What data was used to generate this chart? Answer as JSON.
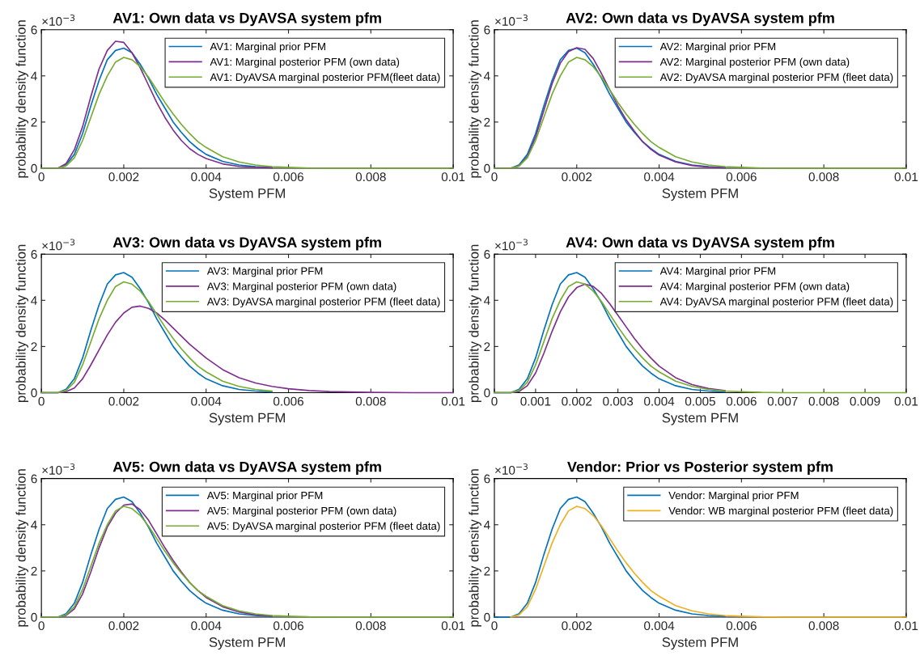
{
  "chart_data": [
    {
      "type": "line",
      "title": "AV1: Own data vs DyAVSA system pfm",
      "xlabel": "System PFM",
      "ylabel": "probability density function",
      "annotations": [
        "×10$^{−3}$"
      ],
      "legend": "top right",
      "xlim": [
        0,
        0.01
      ],
      "ylim": [
        0,
        6
      ],
      "xticks": [
        0,
        0.002,
        0.004,
        0.006,
        0.008,
        0.01
      ],
      "yticks": [
        0,
        2,
        4,
        6
      ],
      "x": [
        0,
        0.0004,
        0.0006,
        0.0008,
        0.001,
        0.0012,
        0.0014,
        0.0016,
        0.0018,
        0.002,
        0.0022,
        0.0024,
        0.0026,
        0.0028,
        0.003,
        0.0032,
        0.0034,
        0.0036,
        0.0038,
        0.004,
        0.0044,
        0.0048,
        0.0052,
        0.0056,
        0.006,
        0.0065,
        0.007,
        0.008,
        0.009,
        0.01
      ],
      "series": [
        {
          "name": "AV1: Marginal prior PFM",
          "color": "#0072bd",
          "values": [
            0,
            0,
            0.15,
            0.6,
            1.5,
            2.7,
            3.8,
            4.7,
            5.1,
            5.2,
            5.0,
            4.5,
            3.9,
            3.2,
            2.6,
            2.0,
            1.55,
            1.15,
            0.85,
            0.6,
            0.3,
            0.14,
            0.07,
            0.03,
            null,
            null,
            null,
            null,
            null,
            null
          ]
        },
        {
          "name": "AV1: Marginal posterior PFM (own data)",
          "color": "#7e2f8e",
          "values": [
            0,
            0,
            0.2,
            0.8,
            1.8,
            3.1,
            4.3,
            5.1,
            5.5,
            5.45,
            5.0,
            4.35,
            3.6,
            2.85,
            2.2,
            1.65,
            1.2,
            0.85,
            0.6,
            0.42,
            0.19,
            0.08,
            0.04,
            0.02,
            null,
            null,
            null,
            null,
            null,
            null
          ]
        },
        {
          "name": "AV1: DyAVSA marginal posterior PFM(fleet data)",
          "color": "#77ac30",
          "values": [
            0,
            0,
            0.1,
            0.45,
            1.2,
            2.2,
            3.2,
            4.0,
            4.6,
            4.8,
            4.7,
            4.4,
            3.95,
            3.4,
            2.85,
            2.35,
            1.9,
            1.5,
            1.15,
            0.9,
            0.5,
            0.27,
            0.14,
            0.07,
            0.04,
            0.01,
            0,
            0,
            0,
            0
          ]
        }
      ]
    },
    {
      "type": "line",
      "title": "AV2: Own data vs DyAVSA system pfm",
      "xlabel": "System PFM",
      "ylabel": "probability density function",
      "annotations": [
        "×10$^{−3}$"
      ],
      "legend": "top right",
      "xlim": [
        0,
        0.01
      ],
      "ylim": [
        0,
        6
      ],
      "xticks": [
        0,
        0.002,
        0.004,
        0.006,
        0.008,
        0.01
      ],
      "yticks": [
        0,
        2,
        4,
        6
      ],
      "x": [
        0,
        0.0004,
        0.0006,
        0.0008,
        0.001,
        0.0012,
        0.0014,
        0.0016,
        0.0018,
        0.002,
        0.0022,
        0.0024,
        0.0026,
        0.0028,
        0.003,
        0.0032,
        0.0034,
        0.0036,
        0.0038,
        0.004,
        0.0044,
        0.0048,
        0.0052,
        0.0056,
        0.006,
        0.0065,
        0.007,
        0.008,
        0.009,
        0.01
      ],
      "series": [
        {
          "name": "AV2: Marginal prior PFM",
          "color": "#0072bd",
          "values": [
            0,
            0,
            0.15,
            0.6,
            1.5,
            2.7,
            3.8,
            4.7,
            5.1,
            5.2,
            5.0,
            4.5,
            3.9,
            3.2,
            2.6,
            2.0,
            1.55,
            1.15,
            0.85,
            0.6,
            0.3,
            0.14,
            0.07,
            0.03,
            null,
            null,
            null,
            null,
            null,
            null
          ]
        },
        {
          "name": "AV2: Marginal posterior PFM (own data)",
          "color": "#7e2f8e",
          "values": [
            0,
            0,
            0.1,
            0.5,
            1.35,
            2.5,
            3.65,
            4.55,
            5.05,
            5.22,
            5.15,
            4.75,
            4.1,
            3.4,
            2.7,
            2.1,
            1.6,
            1.15,
            0.82,
            0.57,
            0.27,
            0.12,
            0.05,
            0.02,
            null,
            null,
            null,
            null,
            null,
            null
          ]
        },
        {
          "name": "AV2: DyAVSA marginal posterior PFM (fleet data)",
          "color": "#77ac30",
          "values": [
            0,
            0,
            0.1,
            0.45,
            1.2,
            2.2,
            3.2,
            4.0,
            4.6,
            4.8,
            4.7,
            4.4,
            3.95,
            3.4,
            2.85,
            2.35,
            1.9,
            1.5,
            1.15,
            0.9,
            0.5,
            0.27,
            0.14,
            0.07,
            0.04,
            0.01,
            0,
            0,
            0,
            0
          ]
        }
      ]
    },
    {
      "type": "line",
      "title": "AV3: Own data vs DyAVSA system pfm",
      "xlabel": "System PFM",
      "ylabel": "probability density function",
      "annotations": [
        "×10$^{−3}$"
      ],
      "legend": "top right",
      "xlim": [
        0,
        0.01
      ],
      "ylim": [
        0,
        6
      ],
      "xticks": [
        0,
        0.002,
        0.004,
        0.006,
        0.008,
        0.01
      ],
      "yticks": [
        0,
        2,
        4,
        6
      ],
      "x": [
        0,
        0.0004,
        0.0006,
        0.0008,
        0.001,
        0.0012,
        0.0014,
        0.0016,
        0.0018,
        0.002,
        0.0022,
        0.0024,
        0.0026,
        0.0028,
        0.003,
        0.0032,
        0.0034,
        0.0036,
        0.0038,
        0.004,
        0.0044,
        0.0048,
        0.0052,
        0.0056,
        0.006,
        0.0065,
        0.007,
        0.008,
        0.009,
        0.01
      ],
      "series": [
        {
          "name": "AV3: Marginal prior PFM",
          "color": "#0072bd",
          "values": [
            0,
            0,
            0.15,
            0.6,
            1.5,
            2.7,
            3.8,
            4.7,
            5.1,
            5.2,
            5.0,
            4.5,
            3.9,
            3.2,
            2.6,
            2.0,
            1.55,
            1.15,
            0.85,
            0.6,
            0.3,
            0.14,
            0.07,
            0.03,
            null,
            null,
            null,
            null,
            null,
            null
          ]
        },
        {
          "name": "AV3: Marginal posterior PFM (own data)",
          "color": "#7e2f8e",
          "values": [
            0,
            0,
            0.04,
            0.2,
            0.6,
            1.2,
            1.85,
            2.5,
            3.05,
            3.45,
            3.7,
            3.75,
            3.65,
            3.45,
            3.15,
            2.8,
            2.45,
            2.1,
            1.8,
            1.5,
            1.0,
            0.65,
            0.42,
            0.27,
            0.17,
            0.09,
            0.05,
            0.01,
            0,
            0
          ]
        },
        {
          "name": "AV3: DyAVSA marginal posterior PFM (fleet data)",
          "color": "#77ac30",
          "values": [
            0,
            0,
            0.1,
            0.45,
            1.2,
            2.2,
            3.2,
            4.0,
            4.6,
            4.8,
            4.7,
            4.4,
            3.95,
            3.4,
            2.85,
            2.35,
            1.9,
            1.5,
            1.15,
            0.9,
            0.5,
            0.27,
            0.14,
            0.07,
            null,
            null,
            null,
            null,
            null,
            null
          ]
        }
      ]
    },
    {
      "type": "line",
      "title": "AV4: Own data vs DyAVSA system pfm",
      "xlabel": "System PFM",
      "ylabel": "probability density function",
      "annotations": [
        "×10$^{−3}$"
      ],
      "legend": "top right",
      "xlim": [
        0,
        0.01
      ],
      "ylim": [
        0,
        6
      ],
      "xticks": [
        0,
        0.001,
        0.002,
        0.003,
        0.004,
        0.005,
        0.006,
        0.007,
        0.008,
        0.009,
        0.01
      ],
      "yticks": [
        0,
        2,
        4,
        6
      ],
      "x": [
        0,
        0.0004,
        0.0006,
        0.0008,
        0.001,
        0.0012,
        0.0014,
        0.0016,
        0.0018,
        0.002,
        0.0022,
        0.0024,
        0.0026,
        0.0028,
        0.003,
        0.0032,
        0.0034,
        0.0036,
        0.0038,
        0.004,
        0.0044,
        0.0048,
        0.0052,
        0.0056,
        0.006,
        0.0065,
        0.007,
        0.008,
        0.009,
        0.01
      ],
      "series": [
        {
          "name": "AV4: Marginal prior PFM",
          "color": "#0072bd",
          "values": [
            0,
            0,
            0.15,
            0.6,
            1.5,
            2.7,
            3.8,
            4.7,
            5.1,
            5.2,
            5.0,
            4.5,
            3.9,
            3.2,
            2.6,
            2.0,
            1.55,
            1.15,
            0.85,
            0.6,
            0.3,
            0.14,
            0.07,
            0.03,
            null,
            null,
            null,
            null,
            null,
            null
          ]
        },
        {
          "name": "AV4: Marginal posterior PFM (own data)",
          "color": "#7e2f8e",
          "values": [
            0,
            0,
            0.05,
            0.3,
            0.85,
            1.7,
            2.65,
            3.5,
            4.15,
            4.55,
            4.7,
            4.6,
            4.3,
            3.85,
            3.35,
            2.85,
            2.35,
            1.9,
            1.5,
            1.15,
            0.65,
            0.35,
            0.18,
            0.09,
            null,
            null,
            null,
            null,
            null,
            null
          ]
        },
        {
          "name": "AV4: DyAVSA marginal posterior PFM (fleet data)",
          "color": "#77ac30",
          "values": [
            0,
            0,
            0.1,
            0.45,
            1.2,
            2.2,
            3.2,
            4.0,
            4.6,
            4.8,
            4.7,
            4.4,
            3.95,
            3.4,
            2.85,
            2.35,
            1.9,
            1.5,
            1.15,
            0.9,
            0.5,
            0.27,
            0.14,
            0.07,
            0.04,
            0.01,
            0,
            0,
            0,
            0
          ]
        }
      ]
    },
    {
      "type": "line",
      "title": "AV5: Own data vs DyAVSA system pfm",
      "xlabel": "System PFM",
      "ylabel": "probability density function",
      "annotations": [
        "×10$^{−3}$"
      ],
      "legend": "top right",
      "xlim": [
        0,
        0.01
      ],
      "ylim": [
        0,
        6
      ],
      "xticks": [
        0,
        0.002,
        0.004,
        0.006,
        0.008,
        0.01
      ],
      "yticks": [
        0,
        2,
        4,
        6
      ],
      "x": [
        0,
        0.0004,
        0.0006,
        0.0008,
        0.001,
        0.0012,
        0.0014,
        0.0016,
        0.0018,
        0.002,
        0.0022,
        0.0024,
        0.0026,
        0.0028,
        0.003,
        0.0032,
        0.0034,
        0.0036,
        0.0038,
        0.004,
        0.0044,
        0.0048,
        0.0052,
        0.0056,
        0.006,
        0.0065,
        0.007,
        0.008,
        0.009,
        0.01
      ],
      "series": [
        {
          "name": "AV5: Marginal prior PFM",
          "color": "#0072bd",
          "values": [
            0,
            0,
            0.15,
            0.6,
            1.5,
            2.7,
            3.8,
            4.7,
            5.1,
            5.2,
            5.0,
            4.5,
            3.9,
            3.2,
            2.6,
            2.0,
            1.55,
            1.15,
            0.85,
            0.6,
            0.3,
            0.14,
            0.07,
            0.03,
            null,
            null,
            null,
            null,
            null,
            null
          ]
        },
        {
          "name": "AV5: Marginal posterior PFM (own data)",
          "color": "#7e2f8e",
          "values": [
            0,
            0,
            0.07,
            0.35,
            1.0,
            1.95,
            3.0,
            3.9,
            4.5,
            4.85,
            4.9,
            4.65,
            4.2,
            3.6,
            3.0,
            2.45,
            1.95,
            1.5,
            1.15,
            0.85,
            0.45,
            0.22,
            0.1,
            0.05,
            null,
            null,
            null,
            null,
            null,
            null
          ]
        },
        {
          "name": "AV5: DyAVSA marginal posterior PFM (fleet data)",
          "color": "#77ac30",
          "values": [
            0,
            0,
            0.1,
            0.45,
            1.2,
            2.2,
            3.2,
            4.0,
            4.6,
            4.8,
            4.7,
            4.4,
            3.95,
            3.4,
            2.85,
            2.35,
            1.9,
            1.5,
            1.15,
            0.9,
            0.5,
            0.27,
            0.14,
            0.07,
            0.04,
            0.01,
            0,
            0,
            0,
            0
          ]
        }
      ]
    },
    {
      "type": "line",
      "title": "Vendor: Prior vs Posterior system pfm",
      "xlabel": "System PFM",
      "ylabel": "probability density function",
      "annotations": [
        "×10$^{−3}$"
      ],
      "legend": "top right",
      "xlim": [
        0,
        0.01
      ],
      "ylim": [
        0,
        6
      ],
      "xticks": [
        0,
        0.002,
        0.004,
        0.006,
        0.008,
        0.01
      ],
      "yticks": [
        0,
        2,
        4,
        6
      ],
      "x": [
        0,
        0.0004,
        0.0006,
        0.0008,
        0.001,
        0.0012,
        0.0014,
        0.0016,
        0.0018,
        0.002,
        0.0022,
        0.0024,
        0.0026,
        0.0028,
        0.003,
        0.0032,
        0.0034,
        0.0036,
        0.0038,
        0.004,
        0.0044,
        0.0048,
        0.0052,
        0.0056,
        0.006,
        0.0065,
        0.007,
        0.008,
        0.009,
        0.01
      ],
      "series": [
        {
          "name": "Vendor: Marginal prior PFM",
          "color": "#0072bd",
          "values": [
            0,
            0,
            0.15,
            0.6,
            1.5,
            2.7,
            3.8,
            4.7,
            5.1,
            5.2,
            5.0,
            4.5,
            3.9,
            3.2,
            2.6,
            2.0,
            1.55,
            1.15,
            0.85,
            0.6,
            0.3,
            0.14,
            0.07,
            0.03,
            null,
            null,
            null,
            null,
            null,
            null
          ]
        },
        {
          "name": "Vendor: WB marginal posterior PFM (fleet data)",
          "color": "#edb120",
          "values": [
            null,
            0,
            0.1,
            0.45,
            1.2,
            2.2,
            3.2,
            4.0,
            4.6,
            4.8,
            4.7,
            4.4,
            3.95,
            3.4,
            2.85,
            2.35,
            1.9,
            1.5,
            1.15,
            0.9,
            0.5,
            0.27,
            0.14,
            0.07,
            0.04,
            0.01,
            0,
            0,
            0,
            0
          ]
        }
      ]
    }
  ]
}
